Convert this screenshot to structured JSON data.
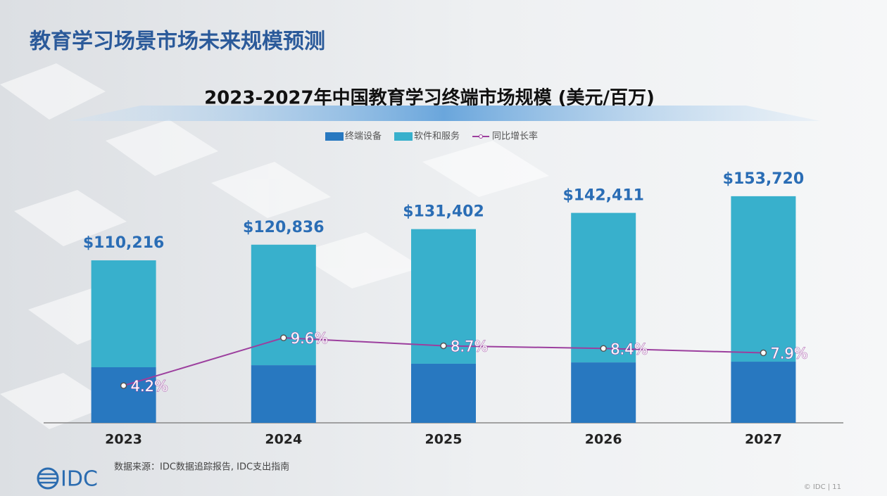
{
  "slide": {
    "title": "教育学习场景市场未来规模预测",
    "source": "数据来源：IDC数据追踪报告, IDC支出指南",
    "logo": "IDC",
    "footer": "© IDC | 11"
  },
  "chart_data": {
    "type": "bar",
    "stacked": true,
    "title": "2023-2027年中国教育学习终端市场规模 (美元/百万)",
    "categories": [
      "2023",
      "2024",
      "2025",
      "2026",
      "2027"
    ],
    "series": [
      {
        "name": "终端设备",
        "color": "#2878c0",
        "values": [
          37700,
          39100,
          40100,
          41000,
          41500
        ]
      },
      {
        "name": "软件和服务",
        "color": "#38b0cc",
        "values": [
          72516,
          81736,
          91302,
          101411,
          112220
        ]
      },
      {
        "name": "同比增长率",
        "color": "#9c3f9e",
        "type": "line",
        "axis": "y2",
        "values": [
          4.2,
          9.6,
          8.7,
          8.4,
          7.9
        ],
        "value_labels": [
          "4.2%",
          "9.6%",
          "8.7%",
          "8.4%",
          "7.9%"
        ]
      }
    ],
    "totals": [
      110216,
      120836,
      131402,
      142411,
      153720
    ],
    "total_labels": [
      "$110,216",
      "$120,836",
      "$131,402",
      "$142,411",
      "$153,720"
    ],
    "ylim": [
      0,
      171800
    ],
    "y2lim": [
      0,
      28.6
    ],
    "grid": false,
    "legend": "top"
  }
}
